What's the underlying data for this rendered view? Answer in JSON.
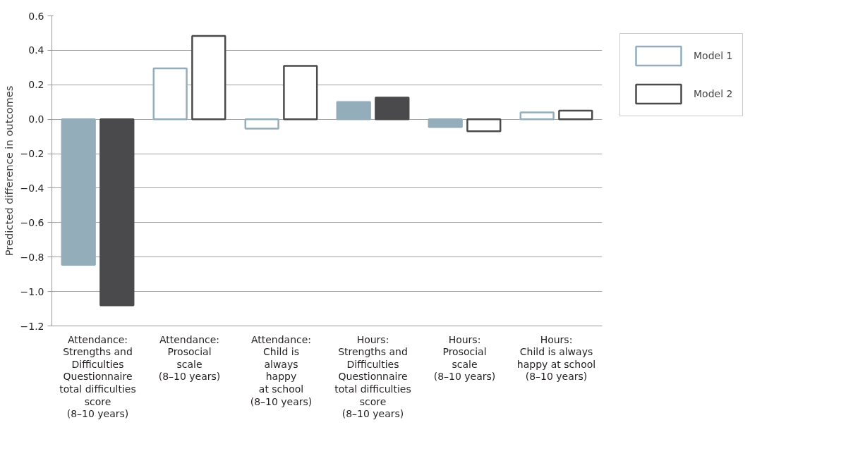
{
  "chart_data": {
    "type": "bar",
    "ylabel": "Predicted difference in outcomes",
    "categories": [
      "Attendance:\nStrengths and\nDifficulties\nQuestionnaire\ntotal difficulties\nscore\n(8–10 years)",
      "Attendance:\nProsocial\nscale\n(8–10 years)",
      "Attendance:\nChild is\nalways\nhappy\nat school\n(8–10 years)",
      "Hours:\nStrengths and\nDifficulties\nQuestionnaire\ntotal difficulties\nscore\n(8–10 years)",
      "Hours:\nProsocial\nscale\n(8–10 years)",
      "Hours:\nChild is always\nhappy at school\n(8–10 years)"
    ],
    "series": [
      {
        "name": "Model 1",
        "color": "#93adbb",
        "colors": [
          "#93adbb",
          "#ffffff",
          "#ffffff",
          "#93adbb",
          "#93adbb",
          "#ffffff"
        ],
        "values": [
          -0.845,
          0.295,
          -0.055,
          0.1,
          -0.045,
          0.04
        ]
      },
      {
        "name": "Model 2",
        "color": "#4a4a4c",
        "colors": [
          "#4a4a4c",
          "#ffffff",
          "#ffffff",
          "#4a4a4c",
          "#ffffff",
          "#ffffff"
        ],
        "values": [
          -1.08,
          0.483,
          0.31,
          0.125,
          -0.07,
          0.05
        ]
      }
    ],
    "ylim": [
      -1.2,
      0.6
    ],
    "yticks": [
      {
        "value": -1.2,
        "label": "−1.2"
      },
      {
        "value": -1.0,
        "label": "−1.0"
      },
      {
        "value": -0.8,
        "label": "−0.8"
      },
      {
        "value": -0.6,
        "label": "−0.6"
      },
      {
        "value": -0.4,
        "label": "−0.4"
      },
      {
        "value": -0.2,
        "label": "−0.2"
      },
      {
        "value": 0,
        "label": "0.0"
      },
      {
        "value": 0.2,
        "label": "0.2"
      },
      {
        "value": 0.4,
        "label": "0.4"
      },
      {
        "value": 0.6,
        "label": "0.6"
      }
    ],
    "grid": "y",
    "legend": "top right"
  }
}
